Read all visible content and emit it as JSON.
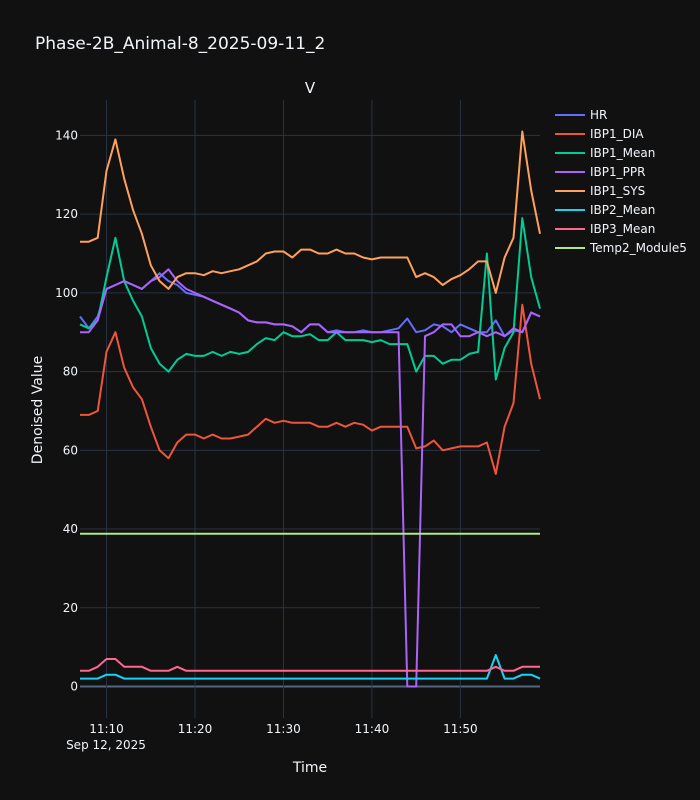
{
  "chart_data": {
    "type": "line",
    "title": "Phase-2B_Animal-8_2025-09-11_2",
    "subtitle": "V",
    "xlabel": "Time",
    "ylabel": "Denoised Value",
    "x_ticks": [
      "11:10",
      "11:20",
      "11:30",
      "11:40",
      "11:50"
    ],
    "x_tick_subtitle": "Sep 12, 2025",
    "y_ticks": [
      "0",
      "20",
      "40",
      "60",
      "80",
      "100",
      "120",
      "140"
    ],
    "x_range": [
      "11:07",
      "11:59"
    ],
    "ylim": [
      -8,
      149
    ],
    "grid": true,
    "legend": "right",
    "x": [
      "11:07",
      "11:08",
      "11:09",
      "11:10",
      "11:11",
      "11:12",
      "11:13",
      "11:14",
      "11:15",
      "11:16",
      "11:17",
      "11:18",
      "11:19",
      "11:20",
      "11:21",
      "11:22",
      "11:23",
      "11:24",
      "11:25",
      "11:26",
      "11:27",
      "11:28",
      "11:29",
      "11:30",
      "11:31",
      "11:32",
      "11:33",
      "11:34",
      "11:35",
      "11:36",
      "11:37",
      "11:38",
      "11:39",
      "11:40",
      "11:41",
      "11:42",
      "11:43",
      "11:44",
      "11:45",
      "11:46",
      "11:47",
      "11:48",
      "11:49",
      "11:50",
      "11:51",
      "11:52",
      "11:53",
      "11:54",
      "11:55",
      "11:56",
      "11:57",
      "11:58",
      "11:59"
    ],
    "series": [
      {
        "name": "HR",
        "color": "#636efa",
        "values": [
          94,
          91,
          94,
          101,
          102,
          103,
          102,
          101,
          103,
          105,
          103,
          102,
          100,
          99.5,
          99,
          98,
          97,
          96,
          95,
          93,
          92.5,
          92.5,
          92,
          92,
          91.5,
          90,
          92,
          92,
          90,
          90.5,
          90,
          90,
          90.5,
          90,
          90,
          90.5,
          91,
          93.5,
          90,
          90.5,
          92,
          91.5,
          90,
          92,
          91,
          90,
          90,
          93,
          89,
          90.5,
          90,
          95,
          94
        ]
      },
      {
        "name": "IBP1_DIA",
        "color": "#ef553b",
        "values": [
          69,
          69,
          70,
          85,
          90,
          81,
          76,
          73,
          66,
          60,
          58,
          62,
          64,
          64,
          63,
          64,
          63,
          63,
          63.5,
          64,
          66,
          68,
          67,
          67.5,
          67,
          67,
          67,
          66,
          66,
          67,
          66,
          67,
          66.5,
          65,
          66,
          66,
          66,
          66,
          60.5,
          61,
          62.5,
          60,
          60.5,
          61,
          61,
          61,
          62,
          54,
          66,
          72,
          97,
          82,
          73
        ]
      },
      {
        "name": "IBP1_Mean",
        "color": "#00cc96",
        "values": [
          92,
          91,
          93,
          104,
          114,
          103,
          98,
          94,
          86,
          82,
          80,
          83,
          84.5,
          84,
          84,
          85,
          84,
          85,
          84.5,
          85,
          87,
          88.5,
          88,
          90,
          89,
          89,
          89.5,
          88,
          88,
          90,
          88,
          88,
          88,
          87.5,
          88,
          87,
          87,
          87,
          80,
          84,
          84,
          82,
          83,
          83,
          84.5,
          85,
          110,
          78,
          86,
          90,
          119,
          104,
          96
        ]
      },
      {
        "name": "IBP1_PPR",
        "color": "#ab63fa",
        "values": [
          90,
          90,
          93,
          101,
          102,
          103,
          102,
          101,
          103,
          104,
          106,
          103,
          101,
          100,
          99,
          98,
          97,
          96,
          95,
          93,
          92.5,
          92.5,
          92,
          92,
          91.5,
          90,
          92,
          92,
          90,
          90,
          90,
          90,
          90,
          90,
          90,
          90,
          90,
          0,
          0,
          89,
          90,
          92,
          92,
          89,
          89,
          90,
          89,
          90,
          89,
          91,
          90,
          95,
          94
        ]
      },
      {
        "name": "IBP1_SYS",
        "color": "#ffa15a",
        "values": [
          113,
          113,
          114,
          131,
          139,
          129,
          121,
          115,
          107,
          103,
          101,
          104,
          105,
          105,
          104.5,
          105.5,
          105,
          105.5,
          106,
          107,
          108,
          110,
          110.5,
          110.5,
          109,
          111,
          111,
          110,
          110,
          111,
          110,
          110,
          109,
          108.5,
          109,
          109,
          109,
          109,
          104,
          105,
          104,
          102,
          103.5,
          104.5,
          106,
          108,
          108,
          100,
          109,
          114,
          141,
          126,
          115
        ]
      },
      {
        "name": "IBP2_Mean",
        "color": "#19d3f3",
        "values": [
          2,
          2,
          2,
          3,
          3,
          2,
          2,
          2,
          2,
          2,
          2,
          2,
          2,
          2,
          2,
          2,
          2,
          2,
          2,
          2,
          2,
          2,
          2,
          2,
          2,
          2,
          2,
          2,
          2,
          2,
          2,
          2,
          2,
          2,
          2,
          2,
          2,
          2,
          2,
          2,
          2,
          2,
          2,
          2,
          2,
          2,
          2,
          8,
          2,
          2,
          3,
          3,
          2
        ]
      },
      {
        "name": "IBP3_Mean",
        "color": "#ff6692",
        "values": [
          4,
          4,
          5,
          7,
          7,
          5,
          5,
          5,
          4,
          4,
          4,
          5,
          4,
          4,
          4,
          4,
          4,
          4,
          4,
          4,
          4,
          4,
          4,
          4,
          4,
          4,
          4,
          4,
          4,
          4,
          4,
          4,
          4,
          4,
          4,
          4,
          4,
          4,
          4,
          4,
          4,
          4,
          4,
          4,
          4,
          4,
          4,
          5,
          4,
          4,
          5,
          5,
          5
        ]
      },
      {
        "name": "Temp2_Module5",
        "color": "#b6e880",
        "values": [
          38.8,
          38.8,
          38.8,
          38.8,
          38.8,
          38.8,
          38.8,
          38.8,
          38.8,
          38.8,
          38.8,
          38.8,
          38.8,
          38.8,
          38.8,
          38.8,
          38.8,
          38.8,
          38.8,
          38.8,
          38.8,
          38.8,
          38.8,
          38.8,
          38.8,
          38.8,
          38.8,
          38.8,
          38.8,
          38.8,
          38.8,
          38.8,
          38.8,
          38.8,
          38.8,
          38.8,
          38.8,
          38.8,
          38.8,
          38.8,
          38.8,
          38.8,
          38.8,
          38.8,
          38.8,
          38.8,
          38.8,
          38.8,
          38.8,
          38.8,
          38.8,
          38.8,
          38.8
        ]
      }
    ]
  }
}
